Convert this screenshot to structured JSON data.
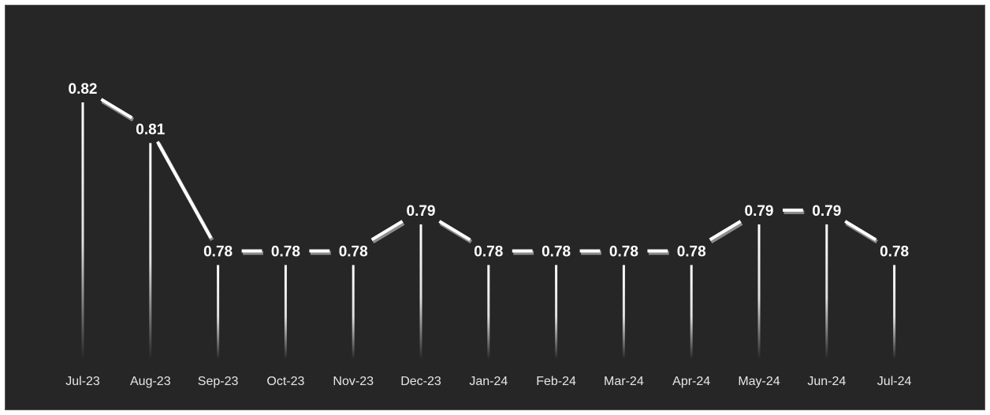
{
  "chart_data": {
    "type": "line",
    "title": "",
    "xlabel": "",
    "ylabel": "",
    "categories": [
      "Jul-23",
      "Aug-23",
      "Sep-23",
      "Oct-23",
      "Nov-23",
      "Dec-23",
      "Jan-24",
      "Feb-24",
      "Mar-24",
      "Apr-24",
      "May-24",
      "Jun-24",
      "Jul-24"
    ],
    "series": [
      {
        "values": [
          0.82,
          0.81,
          0.78,
          0.78,
          0.78,
          0.79,
          0.78,
          0.78,
          0.78,
          0.78,
          0.79,
          0.79,
          0.78
        ],
        "labels": [
          "0.82",
          "0.81",
          "0.78",
          "0.78",
          "0.78",
          "0.79",
          "0.78",
          "0.78",
          "0.78",
          "0.78",
          "0.79",
          "0.79",
          "0.78"
        ]
      }
    ],
    "ylim": [
      0.753,
      0.82
    ],
    "grid": false,
    "legend": "none",
    "drop_lines": true,
    "colors": {
      "background": "#262626",
      "line": "#ffffff",
      "line_shadow": "#8c8c8c",
      "drop_line": "#ffffff",
      "label": "#ffffff",
      "tick_label": "#e6e6e6"
    }
  }
}
